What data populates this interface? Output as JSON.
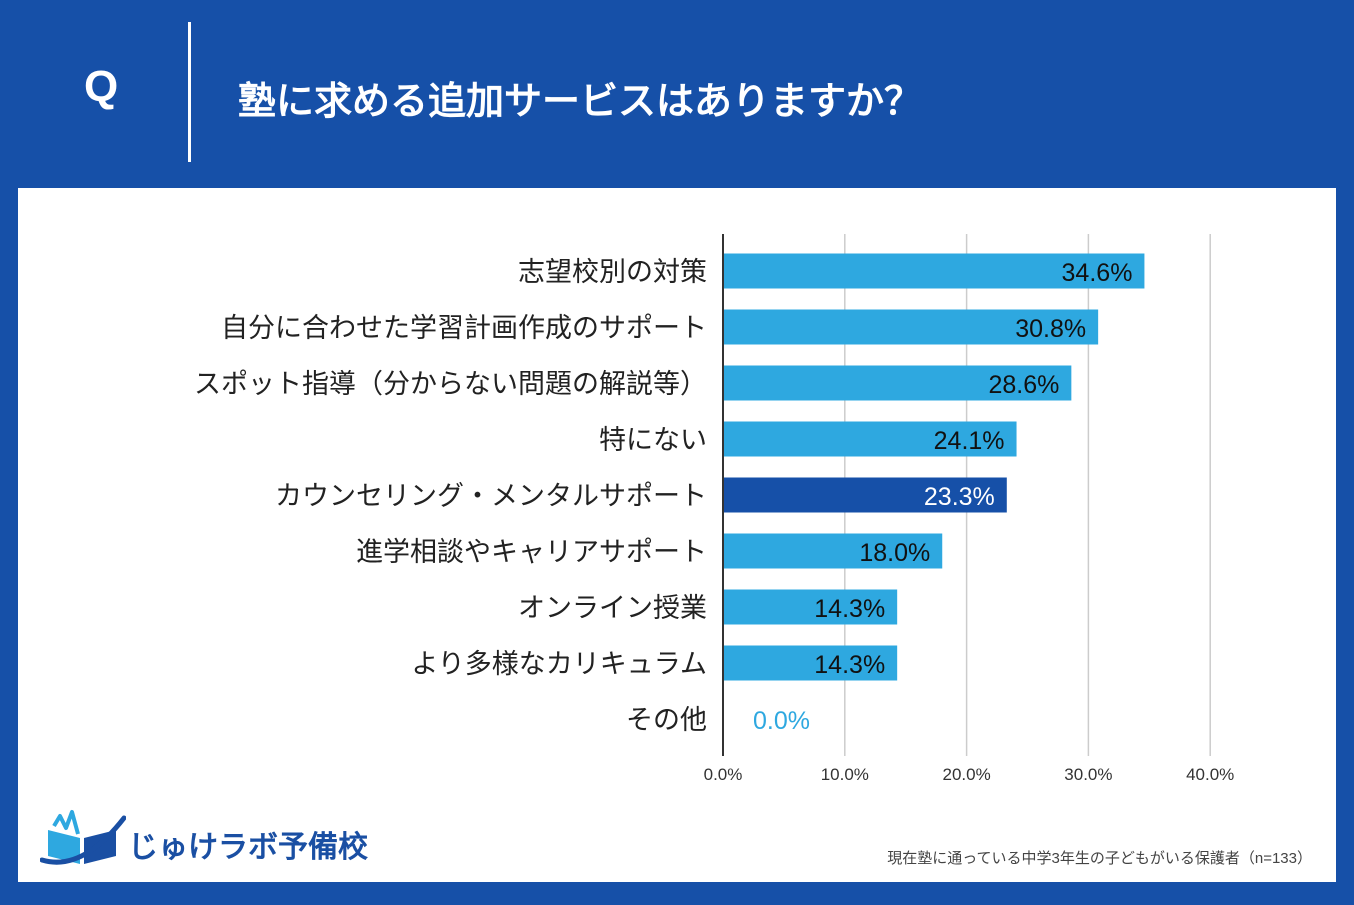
{
  "header": {
    "q_label": "Q",
    "question": "塾に求める追加サービスはありますか？"
  },
  "colors": {
    "background": "#1650a8",
    "bar": "#2ea8e0",
    "bar_highlight": "#1650a8",
    "grid": "#cccccc",
    "axis": "#333333"
  },
  "chart_data": {
    "type": "bar",
    "orientation": "horizontal",
    "categories": [
      "志望校別の対策",
      "自分に合わせた学習計画作成のサポート",
      "スポット指導（分からない問題の解説等）",
      "特にない",
      "カウンセリング・メンタルサポート",
      "進学相談やキャリアサポート",
      "オンライン授業",
      "より多様なカリキュラム",
      "その他"
    ],
    "values": [
      34.6,
      30.8,
      28.6,
      24.1,
      23.3,
      18.0,
      14.3,
      14.3,
      0.0
    ],
    "value_labels": [
      "34.6%",
      "30.8%",
      "28.6%",
      "24.1%",
      "23.3%",
      "18.0%",
      "14.3%",
      "14.3%",
      "0.0%"
    ],
    "highlight_index": 4,
    "xlim": [
      0,
      40
    ],
    "xticks": [
      0,
      10,
      20,
      30,
      40
    ],
    "xtick_labels": [
      "0.0%",
      "10.0%",
      "20.0%",
      "30.0%",
      "40.0%"
    ],
    "grid": true
  },
  "footer": {
    "logo_text": "じゅけラボ予備校",
    "note": "現在塾に通っている中学3年生の子どもがいる保護者（n=133）"
  }
}
